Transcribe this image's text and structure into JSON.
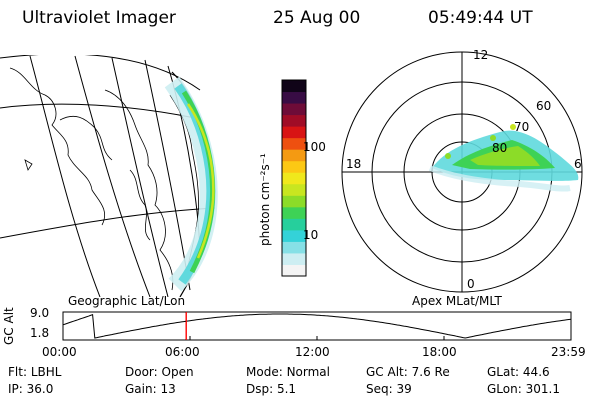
{
  "header": {
    "title": "Ultraviolet Imager",
    "date": "25 Aug 00",
    "time": "05:49:44 UT"
  },
  "colorbar": {
    "unit_label": "photon cm⁻²s⁻¹",
    "ticks": [
      {
        "label": "100",
        "value": 100
      },
      {
        "label": "10",
        "value": 10
      }
    ],
    "scale": "log",
    "range": [
      2.5,
      800
    ],
    "colors": [
      "#f4f4f4",
      "#cdeef2",
      "#86e0e6",
      "#34d2d8",
      "#26cf9c",
      "#3ed256",
      "#8cdc28",
      "#c8e620",
      "#f0e81c",
      "#fcc814",
      "#f49a12",
      "#ee5010",
      "#d81414",
      "#a00c26",
      "#6e0c38",
      "#380c44",
      "#100418"
    ]
  },
  "geo_map": {
    "label": "Geographic Lat/Lon"
  },
  "polar": {
    "label": "Apex MLat/MLT",
    "mlt_labels": {
      "top": "12",
      "left": "18",
      "right": "6",
      "bottom": "0"
    },
    "lat_labels": [
      "60",
      "70",
      "80"
    ]
  },
  "altitude_plot": {
    "ylabel": "GC Alt",
    "y_ticks": [
      "9.0",
      "1.8"
    ],
    "y_range": [
      1.8,
      9.0
    ],
    "x_ticks": [
      "00:00",
      "06:00",
      "12:00",
      "18:00",
      "23:59"
    ],
    "current_time_hours": 5.83,
    "marker_color": "#ff0000"
  },
  "info": {
    "row1": [
      {
        "key": "Flt:",
        "value": "LBHL"
      },
      {
        "key": "Door:",
        "value": "Open"
      },
      {
        "key": "Mode:",
        "value": "Normal"
      },
      {
        "key": "GC Alt:",
        "value": "7.6 Re"
      },
      {
        "key": "GLat:",
        "value": "44.6"
      }
    ],
    "row2": [
      {
        "key": "IP:",
        "value": "36.0"
      },
      {
        "key": "Gain:",
        "value": "13"
      },
      {
        "key": "Dsp:",
        "value": "5.1"
      },
      {
        "key": "Seq:",
        "value": "39"
      },
      {
        "key": "GLon:",
        "value": "301.1"
      }
    ]
  }
}
